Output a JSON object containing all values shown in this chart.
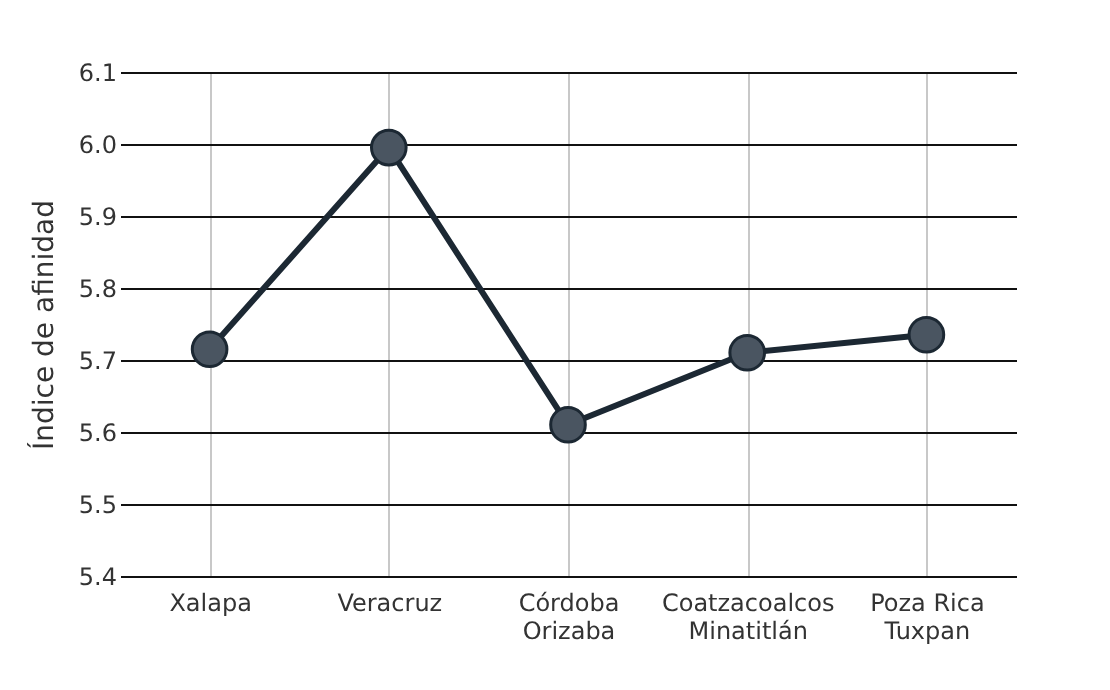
{
  "chart_data": {
    "type": "line",
    "ylabel": "Índice de afinidad",
    "categories": [
      "Xalapa",
      "Veracruz",
      "Córdoba\nOrizaba",
      "Coatzacoalcos\nMinatitlán",
      "Poza Rica\nTuxpan"
    ],
    "series": [
      {
        "color": "#1c2833",
        "values": [
          5.715,
          5.995,
          5.61,
          5.71,
          5.735
        ]
      }
    ],
    "ylim": [
      5.4,
      6.1
    ],
    "yticks": [
      5.4,
      5.5,
      5.6,
      5.7,
      5.8,
      5.9,
      {
        "value": 6.0,
        "label": "6.0"
      },
      6.1
    ],
    "grid": true,
    "marker": "circle",
    "line_style": "solid",
    "legend": false
  }
}
